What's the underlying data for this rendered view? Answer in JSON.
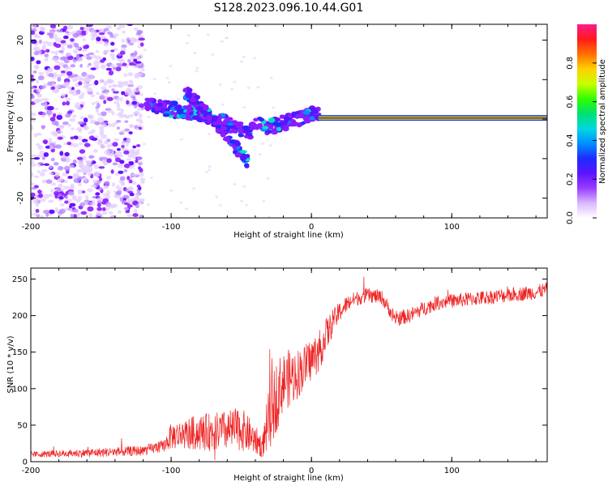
{
  "figure_title": "S128.2023.096.10.44.G01",
  "colors": {
    "spec_point": "#8c1cff",
    "spec_strong": "#1e2cff",
    "spec_hot": "#00e0c8",
    "snr_line": "#ee2222",
    "axis": "#000000"
  },
  "chart_data": [
    {
      "type": "heatmap",
      "name": "spectrogram",
      "title": "",
      "xlabel": "Height of straight line (km)",
      "ylabel": "Frequency (Hz)",
      "xlim": [
        -200,
        168
      ],
      "ylim": [
        -25,
        24
      ],
      "xticks": [
        -200,
        -100,
        0,
        100
      ],
      "xtick_labels": [
        "-200",
        "-100",
        "0",
        "100"
      ],
      "yticks": [
        -20,
        -10,
        0,
        10,
        20
      ],
      "ytick_labels": [
        "-20",
        "-10",
        "0",
        "10",
        "20"
      ],
      "colorbar": {
        "label": "Normalized spectral amplitude",
        "range": [
          0,
          1
        ],
        "ticks": [
          0.0,
          0.2,
          0.4,
          0.6,
          0.8
        ],
        "tick_labels": [
          "0.0",
          "0.2",
          "0.4",
          "0.6",
          "0.8"
        ],
        "colors": [
          "#ffffff",
          "#d9b8ff",
          "#9a3cff",
          "#5a14ff",
          "#1e2cff",
          "#0090ff",
          "#00d8e0",
          "#00e070",
          "#30ff00",
          "#c8ff00",
          "#ffd000",
          "#ff7000",
          "#ff1a1a",
          "#ff1a8c"
        ]
      },
      "features": {
        "noise_region_x": [
          -200,
          -120
        ],
        "chirp_upper": {
          "x": [
            -118,
            -100,
            -80,
            -60,
            -45,
            -38,
            -30,
            -20,
            -10,
            0,
            5
          ],
          "y": [
            3.5,
            2.5,
            1.5,
            -1.0,
            -4.0,
            -1.0,
            -2.0,
            -1.0,
            0.0,
            1.5,
            0.8
          ]
        },
        "chirp_lower": {
          "x": [
            -90,
            -75,
            -60,
            -50,
            -45
          ],
          "y": [
            7.0,
            2.0,
            -4.0,
            -9.0,
            -11.0
          ]
        },
        "carrier_line": {
          "x": [
            5,
            168
          ],
          "y": 0.3
        }
      }
    },
    {
      "type": "line",
      "name": "snr",
      "title": "",
      "xlabel": "Height of straight line (km)",
      "ylabel": "SNR (10 * v/v)",
      "xlim": [
        -200,
        168
      ],
      "ylim": [
        0,
        265
      ],
      "xticks": [
        -200,
        -100,
        0,
        100
      ],
      "xtick_labels": [
        "-200",
        "-100",
        "0",
        "100"
      ],
      "yticks": [
        0,
        50,
        100,
        150,
        200,
        250
      ],
      "ytick_labels": [
        "0",
        "50",
        "100",
        "150",
        "200",
        "250"
      ],
      "series": [
        {
          "name": "SNR",
          "x": [
            -200,
            -160,
            -120,
            -105,
            -100,
            -80,
            -60,
            -50,
            -40,
            -35,
            -30,
            -25,
            -20,
            -15,
            -10,
            -5,
            0,
            5,
            10,
            15,
            20,
            25,
            30,
            40,
            50,
            60,
            70,
            80,
            90,
            100,
            110,
            120,
            130,
            140,
            150,
            160,
            168
          ],
          "values": [
            10,
            12,
            15,
            22,
            35,
            40,
            42,
            45,
            30,
            20,
            60,
            90,
            110,
            115,
            120,
            130,
            140,
            150,
            170,
            190,
            205,
            215,
            222,
            228,
            225,
            195,
            200,
            210,
            218,
            220,
            222,
            224,
            226,
            228,
            230,
            232,
            236
          ],
          "noise_amplitude": [
            4,
            6,
            7,
            8,
            18,
            25,
            28,
            30,
            20,
            15,
            45,
            50,
            40,
            40,
            35,
            30,
            30,
            28,
            25,
            18,
            14,
            12,
            10,
            10,
            10,
            10,
            10,
            10,
            10,
            10,
            10,
            10,
            10,
            10,
            10,
            10,
            10
          ]
        }
      ]
    }
  ]
}
